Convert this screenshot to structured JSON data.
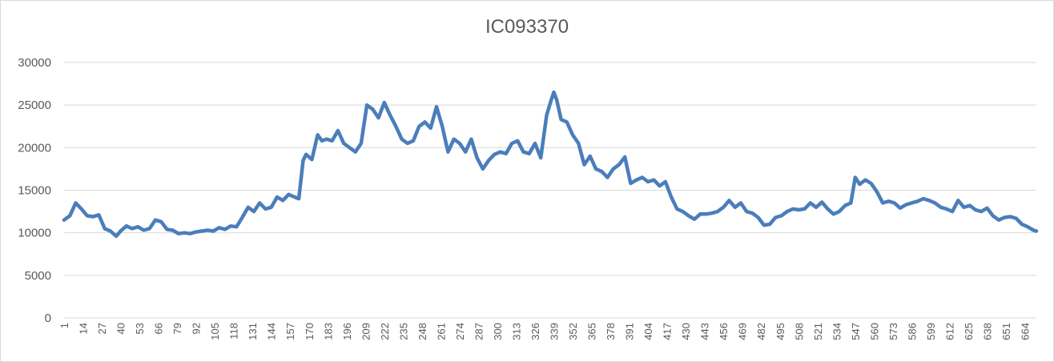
{
  "chart_data": {
    "type": "line",
    "title": "IC093370",
    "xlabel": "",
    "ylabel": "",
    "ylim": [
      0,
      30000
    ],
    "yticks": [
      0,
      5000,
      10000,
      15000,
      20000,
      25000,
      30000
    ],
    "xlim": [
      1,
      672
    ],
    "xticks": [
      1,
      14,
      27,
      40,
      53,
      66,
      79,
      92,
      105,
      118,
      131,
      144,
      157,
      170,
      183,
      196,
      209,
      222,
      235,
      248,
      261,
      274,
      287,
      300,
      313,
      326,
      339,
      352,
      365,
      378,
      391,
      404,
      417,
      430,
      443,
      456,
      469,
      482,
      495,
      508,
      521,
      534,
      547,
      560,
      573,
      586,
      599,
      612,
      625,
      638,
      651,
      664
    ],
    "grid": true,
    "legend": "none",
    "line_color": "#4a7ebb",
    "series": [
      {
        "x": [
          1,
          5,
          9,
          13,
          17,
          21,
          25,
          29,
          33,
          37,
          40,
          44,
          48,
          52,
          56,
          60,
          64,
          68,
          72,
          76,
          80,
          84,
          88,
          92,
          96,
          100,
          104,
          108,
          112,
          116,
          120,
          124,
          128,
          132,
          136,
          140,
          144,
          148,
          152,
          156,
          160,
          163,
          166,
          168,
          172,
          176,
          179,
          182,
          186,
          190,
          194,
          198,
          202,
          206,
          210,
          214,
          218,
          222,
          226,
          230,
          234,
          238,
          242,
          246,
          250,
          254,
          258,
          262,
          266,
          270,
          274,
          278,
          282,
          286,
          290,
          294,
          298,
          302,
          306,
          310,
          314,
          318,
          322,
          326,
          330,
          334,
          337,
          339,
          341,
          344,
          348,
          352,
          356,
          360,
          364,
          368,
          372,
          376,
          380,
          384,
          388,
          392,
          396,
          400,
          404,
          408,
          412,
          416,
          420,
          424,
          428,
          432,
          436,
          440,
          444,
          448,
          452,
          456,
          460,
          464,
          468,
          472,
          476,
          480,
          484,
          488,
          492,
          496,
          500,
          504,
          508,
          512,
          516,
          520,
          524,
          528,
          532,
          536,
          540,
          544,
          547,
          550,
          554,
          558,
          562,
          566,
          570,
          574,
          578,
          582,
          586,
          590,
          594,
          598,
          602,
          606,
          610,
          614,
          618,
          622,
          626,
          630,
          634,
          638,
          642,
          646,
          650,
          654,
          658,
          662,
          666,
          670,
          672
        ],
        "y": [
          11500,
          12000,
          13500,
          12800,
          12000,
          11900,
          12100,
          10500,
          10200,
          9600,
          10200,
          10800,
          10500,
          10700,
          10300,
          10500,
          11500,
          11300,
          10400,
          10300,
          9900,
          10000,
          9900,
          10100,
          10200,
          10300,
          10200,
          10600,
          10400,
          10800,
          10700,
          11800,
          13000,
          12500,
          13500,
          12800,
          13000,
          14200,
          13800,
          14500,
          14200,
          14000,
          18500,
          19200,
          18600,
          21500,
          20800,
          21000,
          20800,
          22000,
          20500,
          20000,
          19500,
          20500,
          25000,
          24500,
          23500,
          25300,
          23800,
          22500,
          21000,
          20500,
          20800,
          22500,
          23000,
          22300,
          24800,
          22500,
          19500,
          21000,
          20500,
          19500,
          21000,
          18800,
          17500,
          18500,
          19200,
          19500,
          19300,
          20500,
          20800,
          19500,
          19300,
          20500,
          18800,
          23800,
          25500,
          26500,
          25600,
          23300,
          23000,
          21500,
          20500,
          18000,
          19000,
          17500,
          17200,
          16500,
          17500,
          18000,
          18900,
          15800,
          16200,
          16500,
          16000,
          16200,
          15500,
          16000,
          14200,
          12800,
          12500,
          12000,
          11600,
          12200,
          12200,
          12300,
          12500,
          13000,
          13800,
          13000,
          13500,
          12500,
          12300,
          11800,
          10900,
          11000,
          11800,
          12000,
          12500,
          12800,
          12700,
          12800,
          13500,
          13000,
          13600,
          12800,
          12200,
          12500,
          13200,
          13500,
          16500,
          15700,
          16200,
          15800,
          14800,
          13500,
          13700,
          13500,
          12900,
          13300,
          13500,
          13700,
          14000,
          13800,
          13500,
          13000,
          12800,
          12500,
          13800,
          13000,
          13200,
          12700,
          12500,
          12900,
          12000,
          11500,
          11800,
          11900,
          11700,
          11000,
          10700,
          10300,
          10200
        ]
      }
    ]
  }
}
